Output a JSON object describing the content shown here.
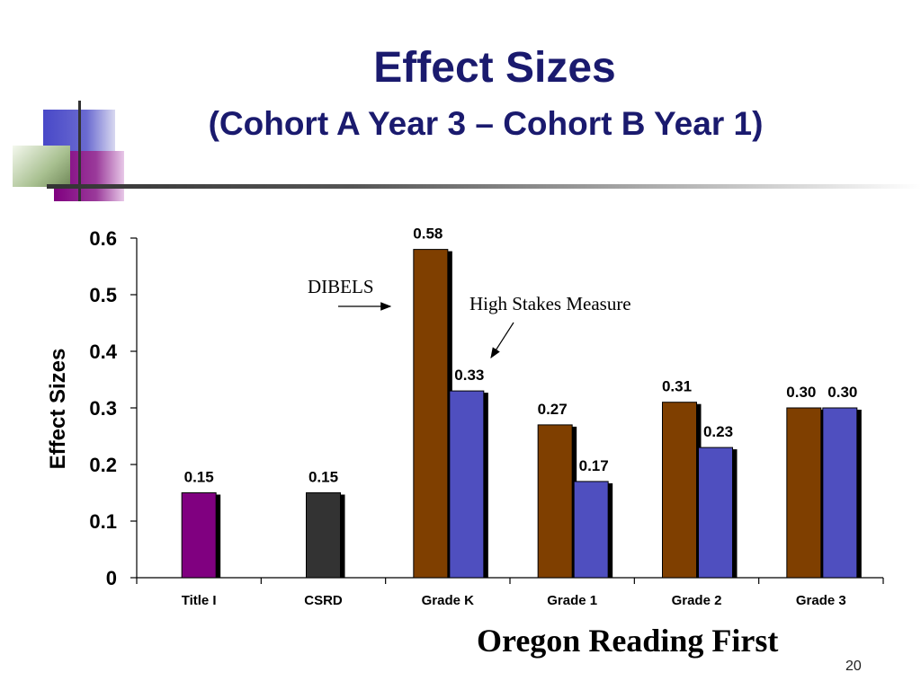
{
  "slide": {
    "title": "Effect Sizes",
    "subtitle": "(Cohort A Year 3 – Cohort B Year 1)",
    "footer_title": "Oregon Reading First",
    "page_number": "20"
  },
  "annotations": {
    "dibels": "DIBELS",
    "high_stakes": "High Stakes Measure"
  },
  "colors": {
    "title": "#1a1a6e",
    "title_i": "#800080",
    "csrd": "#333333",
    "dibels": "#7f3f00",
    "high_stakes": "#4f4fbf"
  },
  "chart_data": {
    "type": "bar",
    "ylabel": "Effect Sizes",
    "xlabel": "",
    "ylim": [
      0,
      0.6
    ],
    "yticks": [
      "0",
      "0.1",
      "0.2",
      "0.3",
      "0.4",
      "0.5",
      "0.6"
    ],
    "categories": [
      "Title I",
      "CSRD",
      "Grade K",
      "Grade 1",
      "Grade 2",
      "Grade 3"
    ],
    "series": [
      {
        "name": "DIBELS",
        "values": [
          null,
          null,
          0.58,
          0.27,
          0.31,
          0.3
        ],
        "labels": [
          "",
          "",
          "0.58",
          "0.27",
          "0.31",
          "0.30"
        ]
      },
      {
        "name": "High Stakes Measure",
        "values": [
          null,
          null,
          0.33,
          0.17,
          0.23,
          0.3
        ],
        "labels": [
          "",
          "",
          "0.33",
          "0.17",
          "0.23",
          "0.30"
        ]
      }
    ],
    "single_bars": [
      {
        "category": "Title I",
        "value": 0.15,
        "label": "0.15"
      },
      {
        "category": "CSRD",
        "value": 0.15,
        "label": "0.15"
      }
    ],
    "grid": false,
    "legend": "none"
  }
}
